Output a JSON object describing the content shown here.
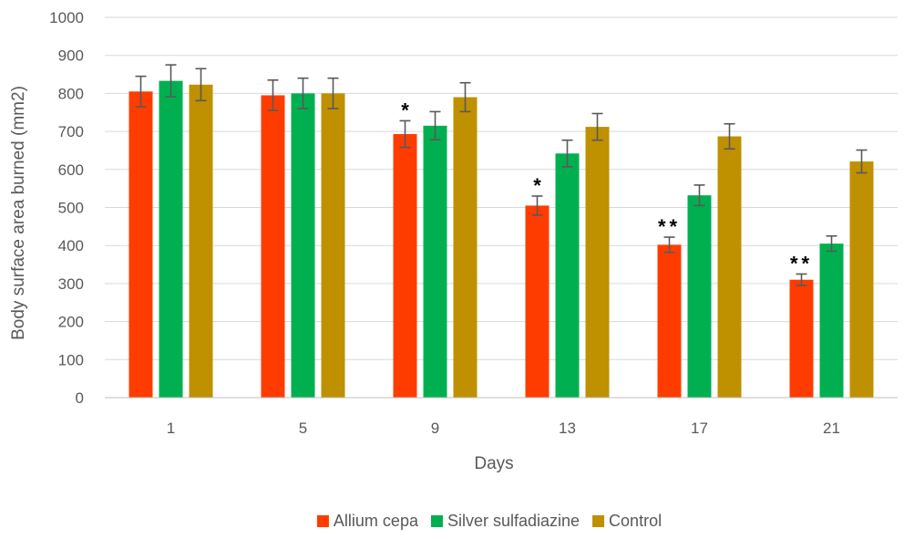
{
  "chart_data": {
    "type": "bar",
    "categories": [
      "1",
      "5",
      "9",
      "13",
      "17",
      "21"
    ],
    "series": [
      {
        "name": "Allium cepa",
        "color": "#FF3C00",
        "values": [
          805,
          795,
          693,
          505,
          402,
          310
        ],
        "errors": [
          40,
          40,
          35,
          25,
          20,
          15
        ],
        "annotations": [
          "",
          "",
          "*",
          "*",
          "**",
          "**"
        ]
      },
      {
        "name": "Silver sulfadiazine",
        "color": "#00B050",
        "values": [
          833,
          800,
          715,
          642,
          532,
          405
        ],
        "errors": [
          42,
          40,
          37,
          35,
          27,
          20
        ]
      },
      {
        "name": "Control",
        "color": "#BF9000",
        "values": [
          823,
          800,
          790,
          712,
          687,
          621
        ],
        "errors": [
          42,
          40,
          38,
          35,
          33,
          30
        ]
      }
    ],
    "xlabel": "Days",
    "ylabel": "Body surface area burned (mm2)",
    "ylim": [
      0,
      1000
    ],
    "yticks": [
      0,
      100,
      200,
      300,
      400,
      500,
      600,
      700,
      800,
      900,
      1000
    ],
    "grid": true,
    "legend_position": "bottom"
  }
}
